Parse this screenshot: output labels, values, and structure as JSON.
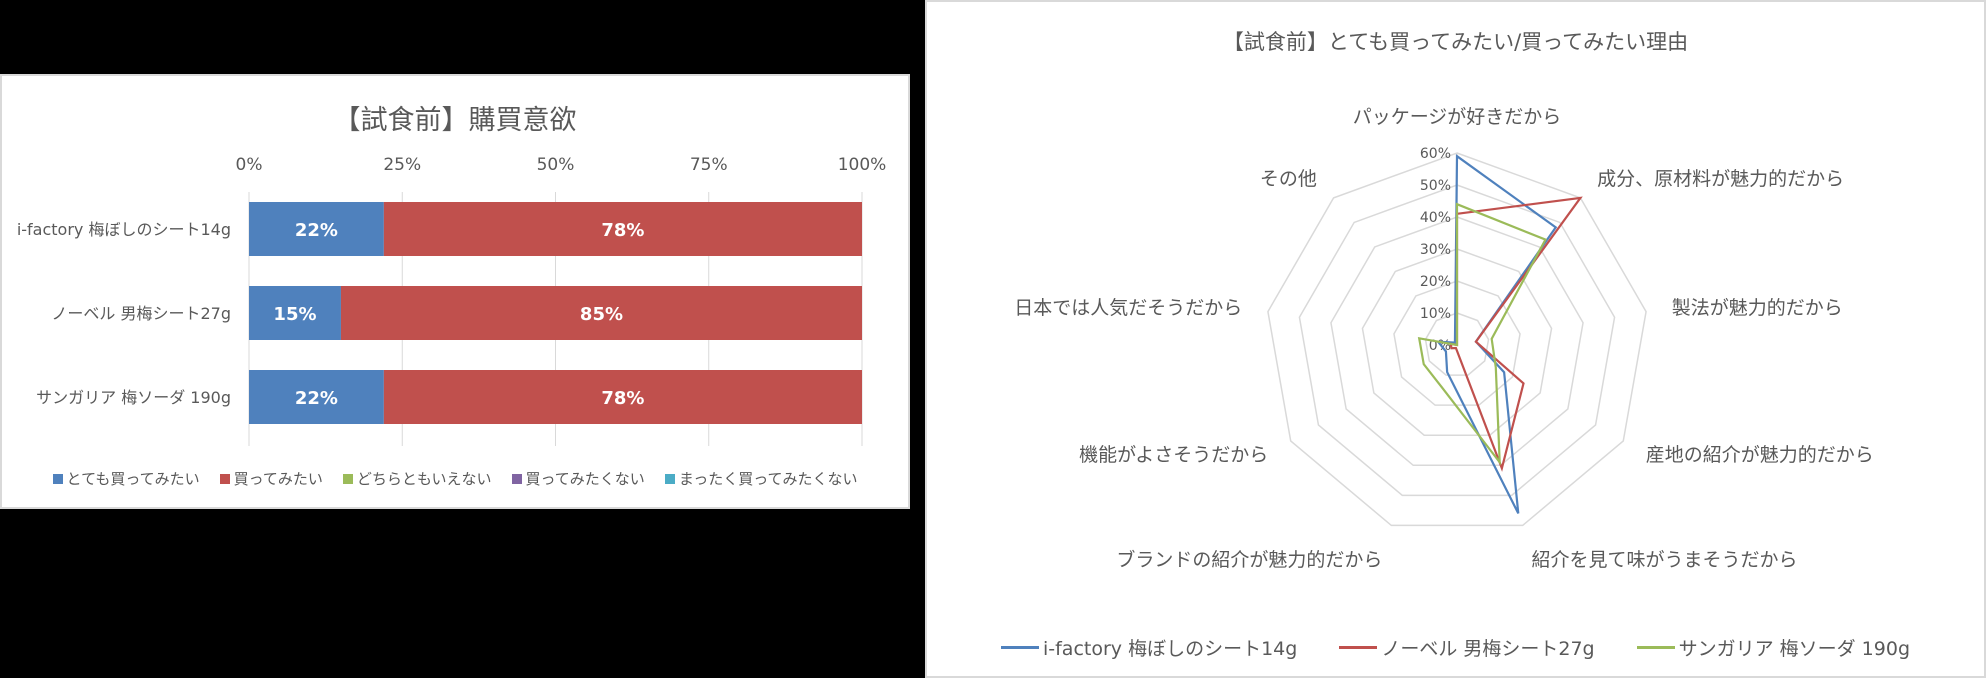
{
  "chart_data": [
    {
      "type": "bar",
      "orientation": "horizontal",
      "stacked": "percent",
      "title": "【試食前】購買意欲",
      "categories": [
        "i-factory 梅ぼしのシート14g",
        "ノーベル 男梅シート27g",
        "サンガリア 梅ソーダ 190g"
      ],
      "series": [
        {
          "name": "とても買ってみたい",
          "color": "#4f81bd",
          "values": [
            22,
            15,
            22
          ]
        },
        {
          "name": "買ってみたい",
          "color": "#c0504d",
          "values": [
            78,
            85,
            78
          ]
        },
        {
          "name": "どちらともいえない",
          "color": "#9bbb59",
          "values": [
            0,
            0,
            0
          ]
        },
        {
          "name": "買ってみたくない",
          "color": "#8064a2",
          "values": [
            0,
            0,
            0
          ]
        },
        {
          "name": "まったく買ってみたくない",
          "color": "#4bacc6",
          "values": [
            0,
            0,
            0
          ]
        }
      ],
      "data_labels": [
        [
          "22%",
          "78%"
        ],
        [
          "15%",
          "85%"
        ],
        [
          "22%",
          "78%"
        ]
      ],
      "xaxis_ticks": [
        "0%",
        "25%",
        "50%",
        "75%",
        "100%"
      ],
      "xlim": [
        0,
        100
      ],
      "xaxis_position": "top",
      "grid": true,
      "legend_position": "bottom"
    },
    {
      "type": "radar",
      "title": "【試食前】とても買ってみたい/買ってみたい理由",
      "categories": [
        "パッケージが好きだから",
        "成分、原材料が魅力的だから",
        "製法が魅力的だから",
        "産地の紹介が魅力的だから",
        "紹介を見て味がうまそうだから",
        "ブランドの紹介が魅力的だから",
        "機能がよさそうだから",
        "日本では人気だそうだから",
        "その他"
      ],
      "series": [
        {
          "name": "i-factory 梅ぼしのシート14g",
          "color": "#4f81bd",
          "values": [
            59,
            48,
            6,
            17,
            56,
            9,
            4,
            6,
            1
          ]
        },
        {
          "name": "ノーベル 男梅シート27g",
          "color": "#c0504d",
          "values": [
            41,
            60,
            6,
            24,
            41,
            1,
            2,
            2,
            0
          ]
        },
        {
          "name": "サンガリア 梅ソーダ 190g",
          "color": "#9bbb59",
          "values": [
            44,
            43,
            11,
            14,
            39,
            14,
            12,
            12,
            0
          ]
        }
      ],
      "radial_ticks": [
        "0%",
        "10%",
        "20%",
        "30%",
        "40%",
        "50%",
        "60%"
      ],
      "rlim": [
        0,
        60
      ],
      "grid": true,
      "legend_position": "bottom"
    }
  ],
  "bar_chart": {
    "title": "【試食前】購買意欲",
    "ticks": [
      "0%",
      "25%",
      "50%",
      "75%",
      "100%"
    ],
    "rows": [
      {
        "label": "i-factory 梅ぼしのシート14g",
        "a": 22,
        "b": 78,
        "a_label": "22%",
        "b_label": "78%"
      },
      {
        "label": "ノーベル 男梅シート27g",
        "a": 15,
        "b": 85,
        "a_label": "15%",
        "b_label": "85%"
      },
      {
        "label": "サンガリア 梅ソーダ 190g",
        "a": 22,
        "b": 78,
        "a_label": "22%",
        "b_label": "78%"
      }
    ],
    "legend": [
      {
        "label": "とても買ってみたい",
        "color": "#4f81bd"
      },
      {
        "label": "買ってみたい",
        "color": "#c0504d"
      },
      {
        "label": "どちらともいえない",
        "color": "#9bbb59"
      },
      {
        "label": "買ってみたくない",
        "color": "#8064a2"
      },
      {
        "label": "まったく買ってみたくない",
        "color": "#4bacc6"
      }
    ]
  },
  "radar_chart": {
    "title": "【試食前】とても買ってみたい/買ってみたい理由",
    "legend": [
      {
        "label": "i-factory 梅ぼしのシート14g",
        "color": "#4f81bd"
      },
      {
        "label": "ノーベル 男梅シート27g",
        "color": "#c0504d"
      },
      {
        "label": "サンガリア 梅ソーダ 190g",
        "color": "#9bbb59"
      }
    ]
  }
}
